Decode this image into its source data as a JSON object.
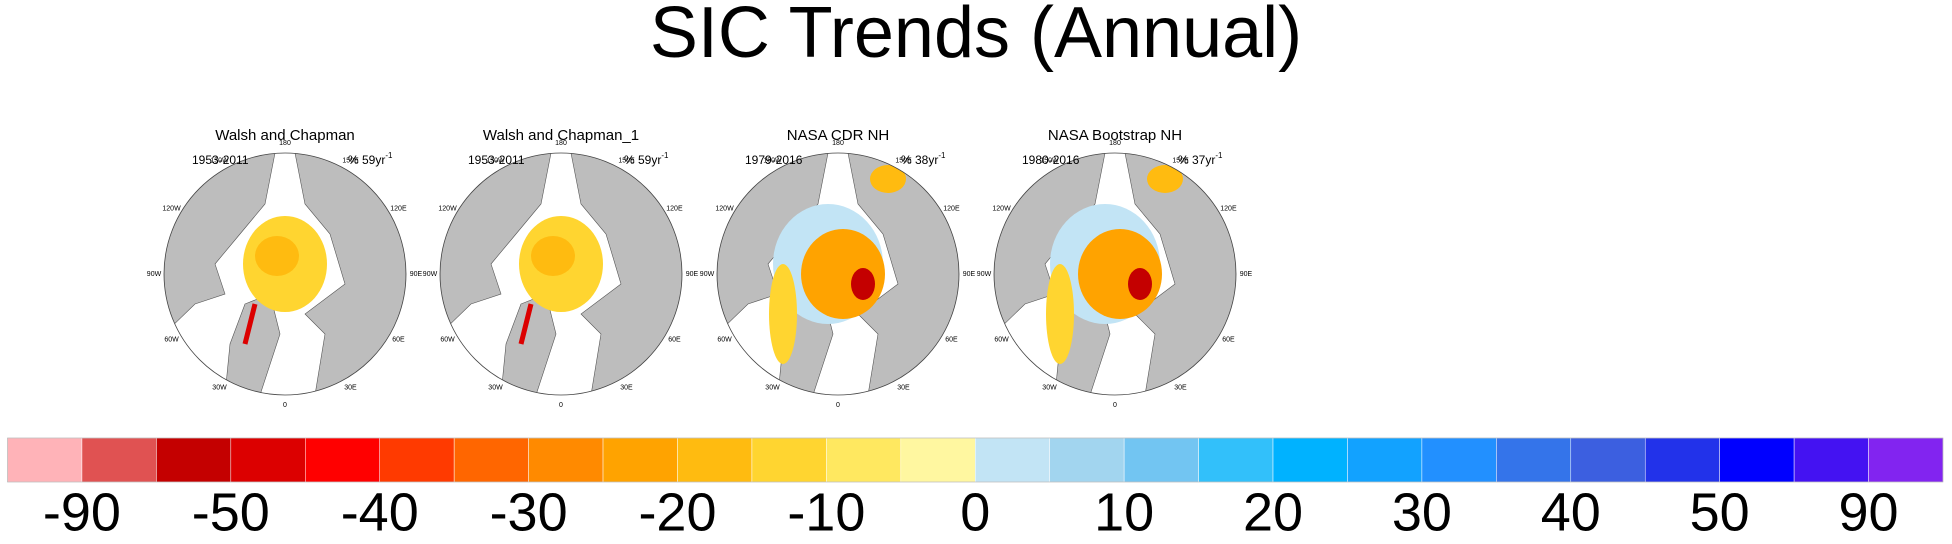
{
  "title": "SIC Trends (Annual)",
  "longitude_labels": [
    "180",
    "150E",
    "120E",
    "90E",
    "60E",
    "30E",
    "0",
    "30W",
    "60W",
    "90W",
    "120W",
    "150W"
  ],
  "panels": [
    {
      "title": "Walsh and Chapman",
      "period": "1953-2011",
      "trend": "% 59yr",
      "trend_exponent": "-1"
    },
    {
      "title": "Walsh and Chapman_1",
      "period": "1953-2011",
      "trend": "% 59yr",
      "trend_exponent": "-1"
    },
    {
      "title": "NASA CDR NH",
      "period": "1979-2016",
      "trend": "% 38yr",
      "trend_exponent": "-1"
    },
    {
      "title": "NASA Bootstrap NH",
      "period": "1980-2016",
      "trend": "% 37yr",
      "trend_exponent": "-1"
    }
  ],
  "colorbar": {
    "colors": [
      "#ffb3b8",
      "#e05252",
      "#c40000",
      "#dc0000",
      "#ff0000",
      "#ff3a00",
      "#ff6600",
      "#ff8a00",
      "#ffa300",
      "#ffbb10",
      "#ffd530",
      "#ffe860",
      "#fff7a0",
      "#c2e4f5",
      "#a2d5ef",
      "#72c5f2",
      "#32c0fa",
      "#00b2ff",
      "#12a2ff",
      "#2290ff",
      "#3474ea",
      "#3c5fe0",
      "#2232ea",
      "#0000ff",
      "#4412f2",
      "#8224f0"
    ],
    "labels": [
      -90,
      -50,
      -40,
      -30,
      -20,
      -10,
      0,
      10,
      20,
      30,
      40,
      50,
      90
    ]
  }
}
